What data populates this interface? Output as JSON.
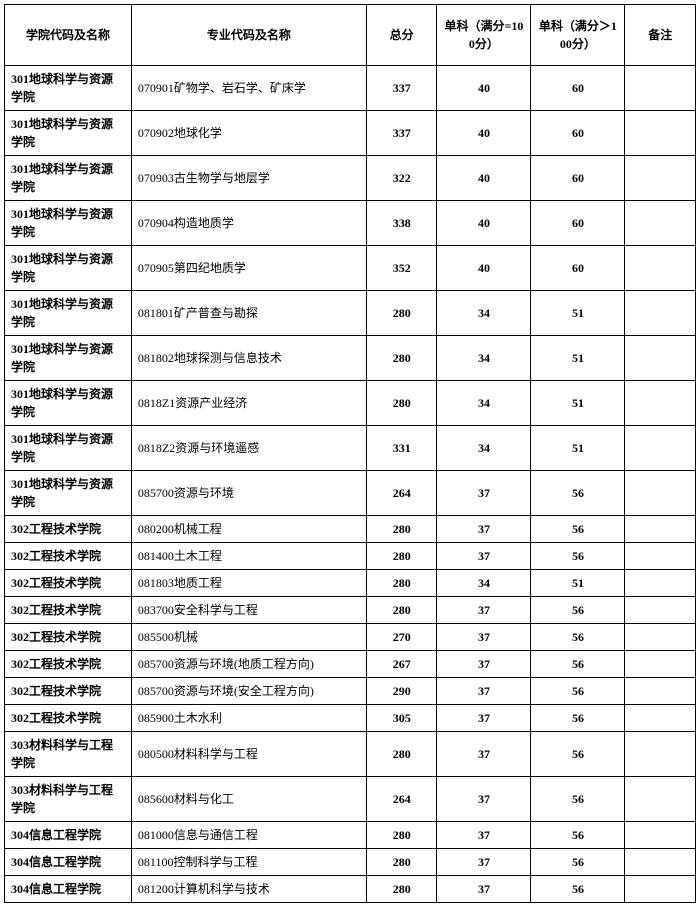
{
  "headers": {
    "school": "学院代码及名称",
    "major": "专业代码及名称",
    "total": "总分",
    "sub100": "单科（满分=100分）",
    "subgt100": "单科（满分＞100分）",
    "remark": "备注"
  },
  "rows": [
    {
      "school": "301地球科学与资源学院",
      "major": "070901矿物学、岩石学、矿床学",
      "total": "337",
      "s1": "40",
      "s2": "60",
      "remark": ""
    },
    {
      "school": "301地球科学与资源学院",
      "major": "070902地球化学",
      "total": "337",
      "s1": "40",
      "s2": "60",
      "remark": ""
    },
    {
      "school": "301地球科学与资源学院",
      "major": "070903古生物学与地层学",
      "total": "322",
      "s1": "40",
      "s2": "60",
      "remark": ""
    },
    {
      "school": "301地球科学与资源学院",
      "major": "070904构造地质学",
      "total": "338",
      "s1": "40",
      "s2": "60",
      "remark": ""
    },
    {
      "school": "301地球科学与资源学院",
      "major": "070905第四纪地质学",
      "total": "352",
      "s1": "40",
      "s2": "60",
      "remark": ""
    },
    {
      "school": "301地球科学与资源学院",
      "major": "081801矿产普查与勘探",
      "total": "280",
      "s1": "34",
      "s2": "51",
      "remark": ""
    },
    {
      "school": "301地球科学与资源学院",
      "major": "081802地球探测与信息技术",
      "total": "280",
      "s1": "34",
      "s2": "51",
      "remark": ""
    },
    {
      "school": "301地球科学与资源学院",
      "major": "0818Z1资源产业经济",
      "total": "280",
      "s1": "34",
      "s2": "51",
      "remark": ""
    },
    {
      "school": "301地球科学与资源学院",
      "major": "0818Z2资源与环境遥感",
      "total": "331",
      "s1": "34",
      "s2": "51",
      "remark": ""
    },
    {
      "school": "301地球科学与资源学院",
      "major": "085700资源与环境",
      "total": "264",
      "s1": "37",
      "s2": "56",
      "remark": ""
    },
    {
      "school": "302工程技术学院",
      "major": "080200机械工程",
      "total": "280",
      "s1": "37",
      "s2": "56",
      "remark": ""
    },
    {
      "school": "302工程技术学院",
      "major": "081400土木工程",
      "total": "280",
      "s1": "37",
      "s2": "56",
      "remark": ""
    },
    {
      "school": "302工程技术学院",
      "major": "081803地质工程",
      "total": "280",
      "s1": "34",
      "s2": "51",
      "remark": ""
    },
    {
      "school": "302工程技术学院",
      "major": "083700安全科学与工程",
      "total": "280",
      "s1": "37",
      "s2": "56",
      "remark": ""
    },
    {
      "school": "302工程技术学院",
      "major": "085500机械",
      "total": "270",
      "s1": "37",
      "s2": "56",
      "remark": ""
    },
    {
      "school": "302工程技术学院",
      "major": "085700资源与环境(地质工程方向)",
      "total": "267",
      "s1": "37",
      "s2": "56",
      "remark": ""
    },
    {
      "school": "302工程技术学院",
      "major": "085700资源与环境(安全工程方向)",
      "total": "290",
      "s1": "37",
      "s2": "56",
      "remark": ""
    },
    {
      "school": "302工程技术学院",
      "major": "085900土木水利",
      "total": "305",
      "s1": "37",
      "s2": "56",
      "remark": ""
    },
    {
      "school": "303材料科学与工程学院",
      "major": "080500材料科学与工程",
      "total": "280",
      "s1": "37",
      "s2": "56",
      "remark": ""
    },
    {
      "school": "303材料科学与工程学院",
      "major": "085600材料与化工",
      "total": "264",
      "s1": "37",
      "s2": "56",
      "remark": ""
    },
    {
      "school": "304信息工程学院",
      "major": "081000信息与通信工程",
      "total": "280",
      "s1": "37",
      "s2": "56",
      "remark": ""
    },
    {
      "school": "304信息工程学院",
      "major": "081100控制科学与工程",
      "total": "280",
      "s1": "37",
      "s2": "56",
      "remark": ""
    },
    {
      "school": "304信息工程学院",
      "major": "081200计算机科学与技术",
      "total": "280",
      "s1": "37",
      "s2": "56",
      "remark": ""
    }
  ]
}
